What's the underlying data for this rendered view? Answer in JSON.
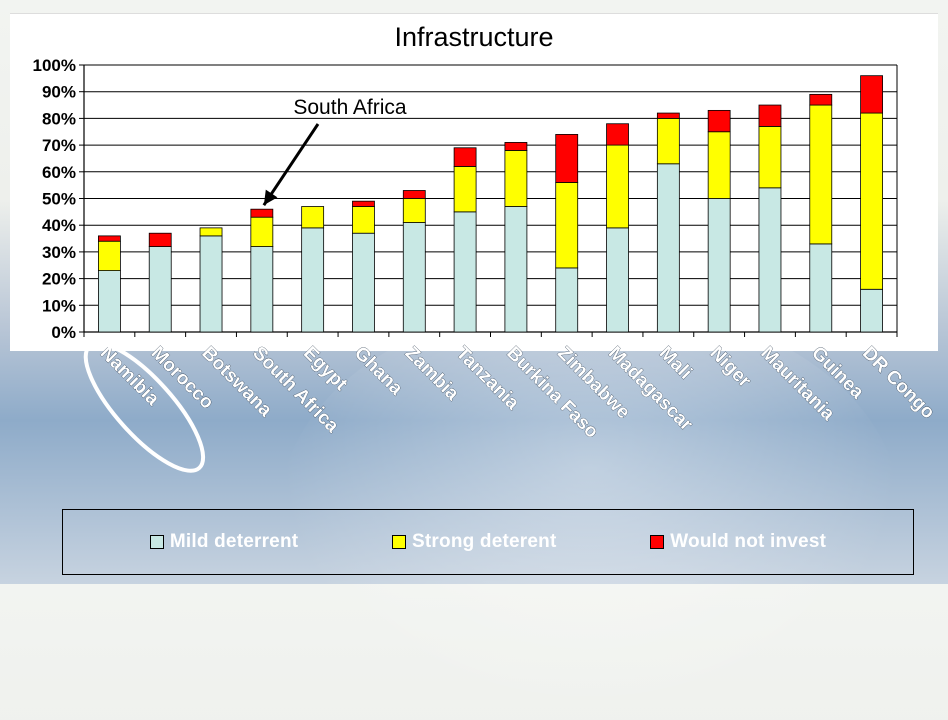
{
  "chart_data": {
    "type": "bar",
    "stacked": true,
    "title": "Infrastructure",
    "categories": [
      "Namibia",
      "Morocco",
      "Botswana",
      "South Africa",
      "Egypt",
      "Ghana",
      "Zambia",
      "Tanzania",
      "Burkina Faso",
      "Zimbabwe",
      "Madagascar",
      "Mali",
      "Niger",
      "Mauritania",
      "Guinea",
      "DR Congo"
    ],
    "series": [
      {
        "name": "Mild deterrent",
        "color": "#c8e8e4",
        "values": [
          23,
          32,
          36,
          32,
          39,
          37,
          41,
          45,
          47,
          24,
          39,
          63,
          50,
          54,
          33,
          16
        ]
      },
      {
        "name": "Strong deterent",
        "color": "#ffff00",
        "values": [
          11,
          0,
          3,
          11,
          8,
          10,
          9,
          17,
          21,
          32,
          31,
          17,
          25,
          23,
          52,
          66
        ]
      },
      {
        "name": "Would not invest",
        "color": "#ff0000",
        "values": [
          2,
          5,
          0,
          3,
          0,
          2,
          3,
          7,
          3,
          18,
          8,
          2,
          8,
          8,
          4,
          14
        ]
      }
    ],
    "ylim": [
      0,
      100
    ],
    "y_ticks": [
      "0%",
      "10%",
      "20%",
      "30%",
      "40%",
      "50%",
      "60%",
      "70%",
      "80%",
      "90%",
      "100%"
    ],
    "grid": true,
    "legend_position": "bottom",
    "annotation": {
      "text": "South Africa",
      "target": "South Africa"
    },
    "highlight": "Namibia"
  }
}
